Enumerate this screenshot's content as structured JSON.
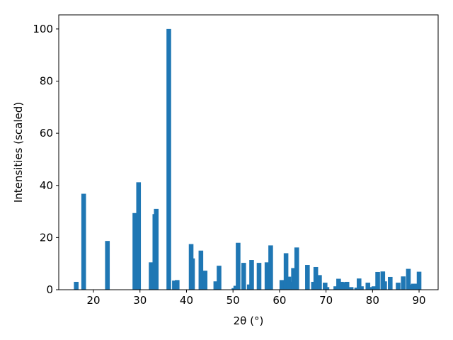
{
  "chart_data": {
    "type": "bar",
    "xlabel": "2θ (°)",
    "ylabel": "Intensities (scaled)",
    "x": [
      16.3,
      17.9,
      23,
      28.9,
      29.7,
      32.4,
      33.2,
      33.5,
      36.2,
      37.4,
      38,
      41,
      41.3,
      43.1,
      44,
      46.3,
      47,
      50.2,
      50.6,
      51.1,
      52.3,
      53.5,
      54,
      55.6,
      57.3,
      58.1,
      60.5,
      61.2,
      61.4,
      62,
      62.5,
      63,
      63.7,
      66,
      67.3,
      67.8,
      68.6,
      69.8,
      70.2,
      72.1,
      72.7,
      73.3,
      74,
      74.5,
      75.4,
      76.6,
      77.1,
      77.6,
      79,
      79.6,
      80.3,
      81.1,
      82.2,
      82.6,
      83.8,
      85.5,
      86.6,
      87.7,
      88.2,
      88.8,
      89.4,
      90
    ],
    "values": [
      3,
      36.8,
      18.7,
      29.4,
      41.2,
      10.5,
      29,
      31,
      100,
      3.5,
      3.7,
      17.5,
      12,
      15,
      7.3,
      3.2,
      9.2,
      0.6,
      1.5,
      18,
      10.3,
      2,
      11.4,
      10.3,
      10.5,
      17,
      3.7,
      3,
      14,
      5,
      3,
      8.3,
      16.2,
      9.5,
      3,
      8.7,
      5.6,
      2.7,
      1,
      1.3,
      4.2,
      3,
      2.9,
      3,
      1,
      0.8,
      4.3,
      1.3,
      2.7,
      1,
      1.3,
      6.8,
      7,
      3.2,
      4.9,
      2.7,
      5.1,
      8,
      2,
      2.3,
      2.3,
      6.9
    ],
    "color": "#1f77b4",
    "xlim": [
      12.54,
      94.1
    ],
    "ylim": [
      0,
      105.4
    ],
    "xticks": [
      20,
      30,
      40,
      50,
      60,
      70,
      80,
      90
    ],
    "yticks": [
      0,
      20,
      40,
      60,
      80,
      100
    ]
  }
}
